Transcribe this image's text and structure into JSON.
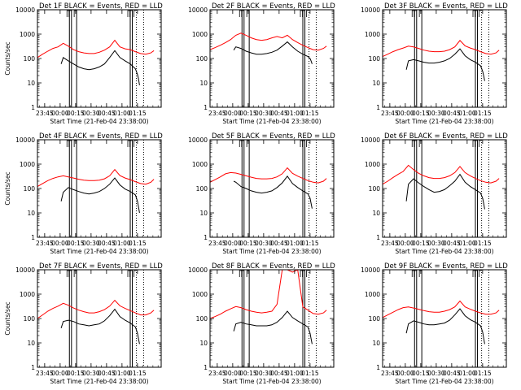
{
  "chart_data": [
    {
      "type": "line",
      "title": "Det 1F BLACK = Events, RED = LLD",
      "ylabel": "Counts/sec",
      "xlabel": "Start Time (21-Feb-04 23:38:00)",
      "ylim": [
        1,
        10000
      ],
      "yscale": "log",
      "x_tick_labels": [
        "23:45",
        "00:00",
        "00:15",
        "00:30",
        "00:45",
        "01:00",
        "01:15"
      ],
      "y_tick_labels": [
        "1",
        "10",
        "100",
        "1000",
        "10000"
      ],
      "series": [
        {
          "color": "#000000",
          "kind": "black",
          "x": [
            23,
            25,
            30,
            35,
            40,
            45,
            50,
            55,
            60,
            65,
            70,
            75,
            80,
            85,
            90,
            95,
            97,
            98,
            99
          ],
          "y": [
            60,
            110,
            80,
            60,
            45,
            38,
            35,
            38,
            45,
            60,
            110,
            210,
            110,
            80,
            60,
            38,
            22,
            15,
            8
          ]
        },
        {
          "color": "#ff0000",
          "kind": "red",
          "x": [
            0,
            5,
            10,
            15,
            20,
            25,
            30,
            35,
            40,
            45,
            50,
            55,
            60,
            65,
            70,
            75,
            80,
            85,
            90,
            95,
            100,
            105,
            110,
            113
          ],
          "y": [
            110,
            150,
            200,
            260,
            300,
            420,
            320,
            230,
            190,
            170,
            160,
            160,
            180,
            220,
            300,
            560,
            300,
            250,
            230,
            190,
            160,
            150,
            170,
            210
          ]
        }
      ]
    },
    {
      "type": "line",
      "title": "Det 2F BLACK = Events, RED = LLD",
      "ylabel": "",
      "xlabel": "Start Time (21-Feb-04 23:38:00)",
      "ylim": [
        1,
        10000
      ],
      "yscale": "log",
      "x_tick_labels": [
        "23:45",
        "00:00",
        "00:15",
        "00:30",
        "00:45",
        "01:00",
        "01:15"
      ],
      "y_tick_labels": [
        "1",
        "10",
        "100",
        "1000",
        "10000"
      ],
      "series": [
        {
          "color": "#000000",
          "kind": "black",
          "x": [
            23,
            25,
            30,
            35,
            40,
            45,
            50,
            55,
            60,
            65,
            70,
            75,
            80,
            85,
            90,
            95,
            97,
            98,
            99
          ],
          "y": [
            220,
            300,
            260,
            200,
            170,
            150,
            150,
            160,
            180,
            220,
            320,
            480,
            300,
            200,
            150,
            120,
            100,
            80,
            60
          ]
        },
        {
          "color": "#ff0000",
          "kind": "red",
          "x": [
            0,
            5,
            10,
            15,
            20,
            25,
            30,
            35,
            40,
            45,
            50,
            55,
            60,
            65,
            70,
            75,
            80,
            85,
            90,
            95,
            100,
            105,
            110,
            113
          ],
          "y": [
            230,
            280,
            350,
            450,
            600,
            900,
            1100,
            900,
            700,
            600,
            560,
            600,
            700,
            800,
            700,
            900,
            600,
            450,
            350,
            280,
            230,
            220,
            260,
            320
          ]
        }
      ]
    },
    {
      "type": "line",
      "title": "Det 3F BLACK = Events, RED = LLD",
      "ylabel": "",
      "xlabel": "Start Time (21-Feb-04 23:38:00)",
      "ylim": [
        1,
        10000
      ],
      "yscale": "log",
      "x_tick_labels": [
        "23:45",
        "00:00",
        "00:15",
        "00:30",
        "00:45",
        "01:00",
        "01:15"
      ],
      "y_tick_labels": [
        "1",
        "10",
        "100",
        "1000",
        "10000"
      ],
      "series": [
        {
          "color": "#000000",
          "kind": "black",
          "x": [
            23,
            25,
            30,
            35,
            40,
            45,
            50,
            55,
            60,
            65,
            70,
            75,
            80,
            85,
            90,
            95,
            97,
            98,
            99
          ],
          "y": [
            35,
            80,
            90,
            80,
            70,
            65,
            65,
            70,
            80,
            100,
            150,
            250,
            130,
            90,
            70,
            50,
            30,
            20,
            12
          ]
        },
        {
          "color": "#ff0000",
          "kind": "red",
          "x": [
            0,
            5,
            10,
            15,
            20,
            25,
            30,
            35,
            40,
            45,
            50,
            55,
            60,
            65,
            70,
            75,
            80,
            85,
            90,
            95,
            100,
            105,
            110,
            113
          ],
          "y": [
            120,
            150,
            190,
            230,
            270,
            320,
            300,
            260,
            220,
            200,
            190,
            190,
            200,
            230,
            300,
            550,
            330,
            270,
            230,
            190,
            160,
            150,
            170,
            220
          ]
        }
      ]
    },
    {
      "type": "line",
      "title": "Det 4F BLACK = Events, RED = LLD",
      "ylabel": "Counts/sec",
      "xlabel": "Start Time (21-Feb-04 23:38:00)",
      "ylim": [
        1,
        10000
      ],
      "yscale": "log",
      "x_tick_labels": [
        "23:45",
        "00:00",
        "00:15",
        "00:30",
        "00:45",
        "01:00",
        "01:15"
      ],
      "y_tick_labels": [
        "1",
        "10",
        "100",
        "1000",
        "10000"
      ],
      "series": [
        {
          "color": "#000000",
          "kind": "black",
          "x": [
            23,
            25,
            30,
            35,
            40,
            45,
            50,
            55,
            60,
            65,
            70,
            75,
            80,
            85,
            90,
            95,
            97,
            98,
            99
          ],
          "y": [
            30,
            70,
            110,
            90,
            75,
            65,
            60,
            65,
            75,
            100,
            150,
            270,
            140,
            95,
            75,
            55,
            30,
            18,
            10
          ]
        },
        {
          "color": "#ff0000",
          "kind": "red",
          "x": [
            0,
            5,
            10,
            15,
            20,
            25,
            30,
            35,
            40,
            45,
            50,
            55,
            60,
            65,
            70,
            75,
            80,
            85,
            90,
            95,
            100,
            105,
            110,
            113
          ],
          "y": [
            120,
            160,
            210,
            260,
            300,
            330,
            300,
            270,
            240,
            220,
            210,
            210,
            220,
            250,
            330,
            600,
            340,
            270,
            230,
            190,
            160,
            150,
            180,
            240
          ]
        }
      ]
    },
    {
      "type": "line",
      "title": "Det 5F BLACK = Events, RED = LLD",
      "ylabel": "",
      "xlabel": "Start Time (21-Feb-04 23:38:00)",
      "ylim": [
        1,
        10000
      ],
      "yscale": "log",
      "x_tick_labels": [
        "23:45",
        "00:00",
        "00:15",
        "00:30",
        "00:45",
        "01:00",
        "01:15"
      ],
      "y_tick_labels": [
        "1",
        "10",
        "100",
        "1000",
        "10000"
      ],
      "series": [
        {
          "color": "#000000",
          "kind": "black",
          "x": [
            23,
            25,
            30,
            35,
            40,
            45,
            50,
            55,
            60,
            65,
            70,
            75,
            80,
            85,
            90,
            95,
            97,
            98,
            99
          ],
          "y": [
            200,
            180,
            120,
            100,
            80,
            70,
            65,
            70,
            80,
            110,
            170,
            320,
            160,
            110,
            80,
            60,
            40,
            25,
            15
          ]
        },
        {
          "color": "#ff0000",
          "kind": "red",
          "x": [
            0,
            5,
            10,
            15,
            20,
            25,
            30,
            35,
            40,
            45,
            50,
            55,
            60,
            65,
            70,
            75,
            80,
            85,
            90,
            95,
            100,
            105,
            110,
            113
          ],
          "y": [
            180,
            230,
            300,
            400,
            450,
            430,
            380,
            330,
            290,
            260,
            250,
            250,
            260,
            300,
            400,
            700,
            420,
            320,
            260,
            210,
            180,
            170,
            200,
            260
          ]
        }
      ]
    },
    {
      "type": "line",
      "title": "Det 6F BLACK = Events, RED = LLD",
      "ylabel": "",
      "xlabel": "Start Time (21-Feb-04 23:38:00)",
      "ylim": [
        1,
        10000
      ],
      "yscale": "log",
      "x_tick_labels": [
        "23:45",
        "00:00",
        "00:15",
        "00:30",
        "00:45",
        "01:00",
        "01:15"
      ],
      "y_tick_labels": [
        "1",
        "10",
        "100",
        "1000",
        "10000"
      ],
      "series": [
        {
          "color": "#000000",
          "kind": "black",
          "x": [
            23,
            25,
            30,
            35,
            40,
            45,
            50,
            55,
            60,
            65,
            70,
            75,
            80,
            85,
            90,
            95,
            97,
            98,
            99
          ],
          "y": [
            30,
            150,
            250,
            170,
            120,
            90,
            70,
            75,
            90,
            130,
            200,
            380,
            180,
            120,
            90,
            65,
            40,
            25,
            14
          ]
        },
        {
          "color": "#ff0000",
          "kind": "red",
          "x": [
            0,
            5,
            10,
            15,
            20,
            25,
            30,
            35,
            40,
            45,
            50,
            55,
            60,
            65,
            70,
            75,
            80,
            85,
            90,
            95,
            100,
            105,
            110,
            113
          ],
          "y": [
            150,
            200,
            280,
            380,
            500,
            900,
            600,
            420,
            330,
            280,
            260,
            260,
            280,
            330,
            450,
            800,
            450,
            330,
            260,
            210,
            180,
            170,
            200,
            260
          ]
        }
      ]
    },
    {
      "type": "line",
      "title": "Det 7F BLACK = Events, RED = LLD",
      "ylabel": "Counts/sec",
      "xlabel": "Start Time (21-Feb-04 23:38:00)",
      "ylim": [
        1,
        10000
      ],
      "yscale": "log",
      "x_tick_labels": [
        "23:45",
        "00:00",
        "00:15",
        "00:30",
        "00:45",
        "01:00",
        "01:15"
      ],
      "y_tick_labels": [
        "1",
        "10",
        "100",
        "1000",
        "10000"
      ],
      "series": [
        {
          "color": "#000000",
          "kind": "black",
          "x": [
            23,
            25,
            30,
            35,
            40,
            45,
            50,
            55,
            60,
            65,
            70,
            75,
            80,
            85,
            90,
            95,
            97,
            98,
            99
          ],
          "y": [
            40,
            75,
            85,
            75,
            60,
            55,
            50,
            55,
            60,
            80,
            130,
            240,
            120,
            85,
            65,
            45,
            25,
            15,
            9
          ]
        },
        {
          "color": "#ff0000",
          "kind": "red",
          "x": [
            0,
            5,
            10,
            15,
            20,
            25,
            30,
            35,
            40,
            45,
            50,
            55,
            60,
            65,
            70,
            75,
            80,
            85,
            90,
            95,
            100,
            105,
            110,
            113
          ],
          "y": [
            100,
            140,
            200,
            260,
            320,
            420,
            350,
            270,
            220,
            190,
            170,
            170,
            190,
            230,
            320,
            560,
            330,
            260,
            210,
            170,
            140,
            140,
            170,
            220
          ]
        }
      ]
    },
    {
      "type": "line",
      "title": "Det 8F BLACK = Events, RED = LLD",
      "ylabel": "",
      "xlabel": "Start Time (21-Feb-04 23:38:00)",
      "ylim": [
        1,
        10000
      ],
      "yscale": "log",
      "x_tick_labels": [
        "23:45",
        "00:00",
        "00:15",
        "00:30",
        "00:45",
        "01:00",
        "01:15"
      ],
      "y_tick_labels": [
        "1",
        "10",
        "100",
        "1000",
        "10000"
      ],
      "series": [
        {
          "color": "#000000",
          "kind": "black",
          "x": [
            23,
            25,
            30,
            35,
            40,
            45,
            50,
            55,
            60,
            65,
            70,
            75,
            80,
            85,
            90,
            95,
            97,
            98,
            99
          ],
          "y": [
            30,
            60,
            70,
            60,
            55,
            50,
            50,
            50,
            55,
            70,
            110,
            200,
            110,
            80,
            60,
            45,
            25,
            15,
            9
          ]
        },
        {
          "color": "#ff0000",
          "kind": "red",
          "x": [
            0,
            5,
            10,
            15,
            20,
            25,
            30,
            35,
            40,
            45,
            50,
            55,
            60,
            65,
            70,
            75,
            80,
            85,
            90,
            95,
            100,
            105,
            110,
            113
          ],
          "y": [
            100,
            120,
            150,
            200,
            250,
            310,
            280,
            230,
            200,
            180,
            170,
            180,
            200,
            380,
            10000,
            10000,
            8000,
            10000,
            300,
            220,
            160,
            150,
            170,
            220
          ]
        }
      ]
    },
    {
      "type": "line",
      "title": "Det 9F BLACK = Events, RED = LLD",
      "ylabel": "",
      "xlabel": "Start Time (21-Feb-04 23:38:00)",
      "ylim": [
        1,
        10000
      ],
      "yscale": "log",
      "x_tick_labels": [
        "23:45",
        "00:00",
        "00:15",
        "00:30",
        "00:45",
        "01:00",
        "01:15"
      ],
      "y_tick_labels": [
        "1",
        "10",
        "100",
        "1000",
        "10000"
      ],
      "series": [
        {
          "color": "#000000",
          "kind": "black",
          "x": [
            23,
            25,
            30,
            35,
            40,
            45,
            50,
            55,
            60,
            65,
            70,
            75,
            80,
            85,
            90,
            95,
            97,
            98,
            99
          ],
          "y": [
            25,
            60,
            80,
            70,
            60,
            55,
            55,
            60,
            65,
            85,
            140,
            250,
            130,
            90,
            70,
            50,
            28,
            16,
            9
          ]
        },
        {
          "color": "#ff0000",
          "kind": "red",
          "x": [
            0,
            5,
            10,
            15,
            20,
            25,
            30,
            35,
            40,
            45,
            50,
            55,
            60,
            65,
            70,
            75,
            80,
            85,
            90,
            95,
            100,
            105,
            110,
            113
          ],
          "y": [
            110,
            140,
            180,
            230,
            280,
            300,
            270,
            240,
            210,
            190,
            180,
            180,
            200,
            230,
            300,
            520,
            300,
            240,
            200,
            170,
            150,
            150,
            170,
            220
          ]
        }
      ]
    }
  ]
}
